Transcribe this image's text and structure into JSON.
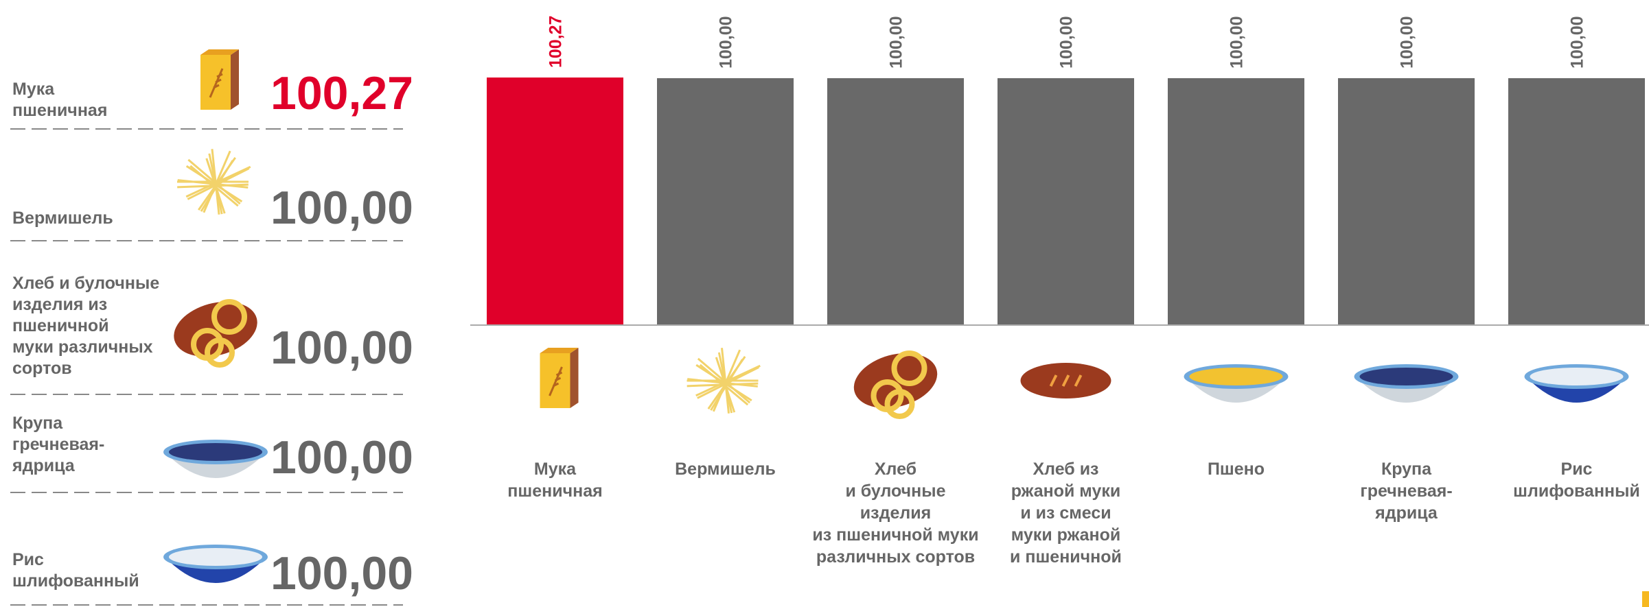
{
  "summary": [
    {
      "label": "Мука\nпшеничная",
      "value": "100,27"
    },
    {
      "label": "Вермишель",
      "value": "100,00"
    },
    {
      "label": "Хлеб и булочные\nизделия из\nпшеничной\nмуки различных\nсортов",
      "value": "100,00"
    },
    {
      "label": "Крупа\nгречневая-\nядрица",
      "value": "100,00"
    },
    {
      "label": "Рис\nшлифованный",
      "value": "100,00"
    }
  ],
  "chart_data": {
    "type": "bar",
    "categories": [
      "Мука\nпшеничная",
      "Вермишель",
      "Хлеб\nи булочные\nизделия\nиз пшеничной муки\nразличных сортов",
      "Хлеб из\nржаной муки\nи из смеси\nмуки ржаной\nи пшеничной",
      "Пшено",
      "Крупа\nгречневая-\nядрица",
      "Рис\nшлифованный"
    ],
    "values": [
      100.27,
      100,
      100,
      100,
      100,
      100,
      100
    ],
    "value_labels": [
      "100,27",
      "100,00",
      "100,00",
      "100,00",
      "100,00",
      "100,00",
      "100,00"
    ],
    "colors": [
      "#e0002a",
      "#696969",
      "#696969",
      "#696969",
      "#696969",
      "#696969",
      "#696969"
    ]
  }
}
